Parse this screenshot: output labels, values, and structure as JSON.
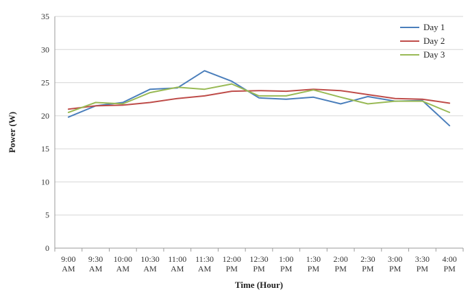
{
  "chart_data": {
    "type": "line",
    "title": "",
    "xlabel": "Time (Hour)",
    "ylabel": "Power (W)",
    "ylim": [
      0,
      35
    ],
    "yticks": [
      0,
      5,
      10,
      15,
      20,
      25,
      30,
      35
    ],
    "grid": true,
    "legend_position": "top-right",
    "categories": [
      [
        "9:00",
        "AM"
      ],
      [
        "9:30",
        "AM"
      ],
      [
        "10:00",
        "AM"
      ],
      [
        "10:30",
        "AM"
      ],
      [
        "11:00",
        "AM"
      ],
      [
        "11:30",
        "AM"
      ],
      [
        "12:00",
        "PM"
      ],
      [
        "12:30",
        "PM"
      ],
      [
        "1:00",
        "PM"
      ],
      [
        "1:30",
        "PM"
      ],
      [
        "2:00",
        "PM"
      ],
      [
        "2:30",
        "PM"
      ],
      [
        "3:00",
        "PM"
      ],
      [
        "3:30",
        "PM"
      ],
      [
        "4:00",
        "PM"
      ]
    ],
    "series": [
      {
        "name": "Day 1",
        "color": "#4a7ebb",
        "values": [
          19.8,
          21.5,
          22.0,
          24.0,
          24.2,
          26.8,
          25.2,
          22.7,
          22.5,
          22.8,
          21.8,
          22.9,
          22.2,
          22.3,
          18.5
        ]
      },
      {
        "name": "Day 2",
        "color": "#be4b48",
        "values": [
          21.0,
          21.5,
          21.6,
          22.0,
          22.6,
          23.0,
          23.7,
          23.8,
          23.7,
          24.0,
          23.8,
          23.2,
          22.6,
          22.5,
          21.9
        ]
      },
      {
        "name": "Day 3",
        "color": "#98b954",
        "values": [
          20.5,
          22.0,
          21.8,
          23.5,
          24.3,
          24.0,
          24.8,
          23.0,
          23.0,
          23.9,
          22.8,
          21.8,
          22.2,
          22.2,
          20.5
        ]
      }
    ]
  }
}
